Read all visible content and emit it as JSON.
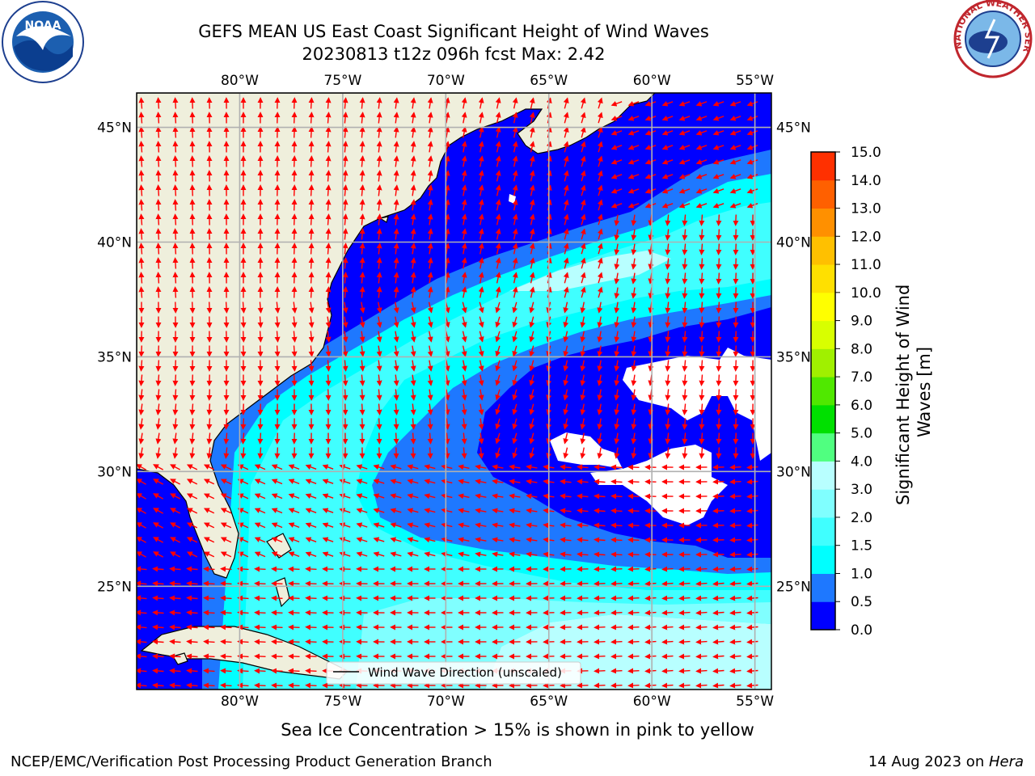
{
  "title_line1": "GEFS MEAN US East Coast Significant Height of Wind Waves",
  "title_line2": "20230813 t12z 096h fcst   Max: 2.42",
  "bottom_note": "Sea Ice Concentration > 15% is shown in pink to yellow",
  "footer_left": "NCEP/EMC/Verification Post Processing Product Generation Branch",
  "footer_date": "14 Aug 2023 on ",
  "footer_machine": "Hera",
  "legend_label": "Wind Wave Direction (unscaled)",
  "logos": {
    "left": "NOAA",
    "right_text": "NATIONAL WEATHER SERVICE"
  },
  "map": {
    "lon_ticks": [
      "80°W",
      "75°W",
      "70°W",
      "65°W",
      "60°W",
      "55°W"
    ],
    "lat_ticks": [
      "45°N",
      "40°N",
      "35°N",
      "30°N",
      "25°N"
    ],
    "lon_values": [
      -80,
      -75,
      -70,
      -65,
      -60,
      -55
    ],
    "lat_values": [
      45,
      40,
      35,
      30,
      25
    ],
    "extent": {
      "lon_min": -85,
      "lon_max": -54.2,
      "lat_min": 20.5,
      "lat_max": 46.5
    }
  },
  "colorbar": {
    "label": "Significant Height of Wind Waves [m]",
    "ticks": [
      "15.0",
      "14.0",
      "13.0",
      "12.0",
      "11.0",
      "10.0",
      "9.0",
      "8.0",
      "7.0",
      "6.0",
      "5.0",
      "4.0",
      "3.0",
      "2.0",
      "1.5",
      "1.0",
      "0.5",
      "0.0"
    ],
    "bands": [
      "#0000ff",
      "#1e78ff",
      "#00ffff",
      "#40ffff",
      "#80ffff",
      "#b8ffff",
      "#50ff80",
      "#00e000",
      "#50e800",
      "#a0f000",
      "#d8ff00",
      "#ffff00",
      "#ffe000",
      "#ffc000",
      "#ff9000",
      "#ff6000",
      "#ff3000",
      "#ff0000"
    ]
  },
  "colors": {
    "land": "#efefdc",
    "arrow": "#ff0000",
    "grid": "#b0b0b0",
    "ice_free_white": "#ffffff"
  }
}
